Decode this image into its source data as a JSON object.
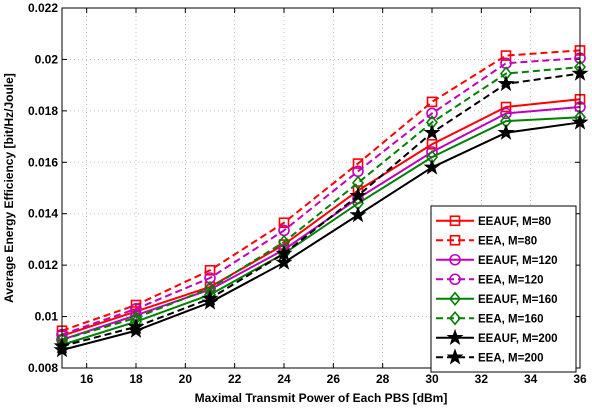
{
  "chart_data": {
    "type": "line",
    "xlabel": "Maximal Transmit Power of Each PBS [dBm]",
    "ylabel": "Average Energy Efficiency [bit/Hz/Joule]",
    "xlim": [
      15,
      36
    ],
    "ylim": [
      0.008,
      0.022
    ],
    "xticks": [
      16,
      18,
      20,
      22,
      24,
      26,
      28,
      30,
      32,
      34,
      36
    ],
    "yticks": [
      0.008,
      0.01,
      0.012,
      0.014,
      0.016,
      0.018,
      0.02,
      0.022
    ],
    "xtick_labels": [
      "16",
      "18",
      "20",
      "22",
      "24",
      "26",
      "28",
      "30",
      "32",
      "34",
      "36"
    ],
    "ytick_labels": [
      "0.008",
      "0.01",
      "0.012",
      "0.014",
      "0.016",
      "0.018",
      "0.02",
      "0.022"
    ],
    "grid": true,
    "legend_position": "bottom-right",
    "x": [
      15,
      18,
      21,
      24,
      27,
      30,
      33,
      36
    ],
    "series": [
      {
        "name": "EEAUF, M=80",
        "color": "#ff0000",
        "dash": "solid",
        "marker": "square",
        "values": [
          0.00925,
          0.0102,
          0.01115,
          0.0128,
          0.0149,
          0.0167,
          0.01815,
          0.01845
        ]
      },
      {
        "name": "EEA, M=80",
        "color": "#ff0000",
        "dash": "dashed",
        "marker": "square",
        "values": [
          0.00945,
          0.01045,
          0.0118,
          0.01365,
          0.01595,
          0.01835,
          0.02015,
          0.02035
        ]
      },
      {
        "name": "EEAUF, M=120",
        "color": "#bf00bf",
        "dash": "solid",
        "marker": "circle",
        "values": [
          0.0091,
          0.01005,
          0.01105,
          0.0126,
          0.0146,
          0.0164,
          0.0179,
          0.01815
        ]
      },
      {
        "name": "EEA, M=120",
        "color": "#bf00bf",
        "dash": "dashed",
        "marker": "circle",
        "values": [
          0.0093,
          0.0103,
          0.0115,
          0.01335,
          0.01565,
          0.0179,
          0.01985,
          0.02005
        ]
      },
      {
        "name": "EEAUF, M=160",
        "color": "#008000",
        "dash": "solid",
        "marker": "diamond",
        "values": [
          0.0089,
          0.0098,
          0.01085,
          0.01245,
          0.0144,
          0.0162,
          0.0176,
          0.01775
        ]
      },
      {
        "name": "EEA, M=160",
        "color": "#008000",
        "dash": "dashed",
        "marker": "diamond",
        "values": [
          0.0091,
          0.00995,
          0.0111,
          0.0129,
          0.0152,
          0.01755,
          0.01945,
          0.0197
        ]
      },
      {
        "name": "EEAUF, M=200",
        "color": "#000000",
        "dash": "solid",
        "marker": "star",
        "values": [
          0.0087,
          0.00945,
          0.01055,
          0.0121,
          0.01395,
          0.0158,
          0.01715,
          0.01755
        ]
      },
      {
        "name": "EEA, M=200",
        "color": "#000000",
        "dash": "dashed",
        "marker": "star",
        "values": [
          0.00885,
          0.0096,
          0.0107,
          0.01245,
          0.0147,
          0.01715,
          0.01905,
          0.01945
        ]
      }
    ]
  }
}
